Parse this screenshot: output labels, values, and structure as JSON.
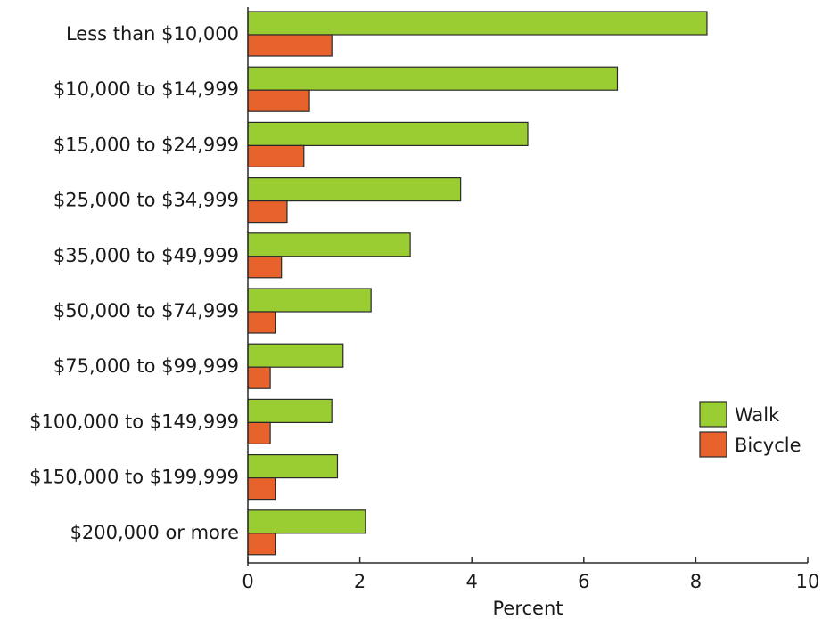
{
  "chart_data": {
    "type": "bar",
    "orientation": "horizontal",
    "title": "",
    "xlabel": "Percent",
    "ylabel": "",
    "xlim": [
      0,
      10
    ],
    "xticks": [
      0,
      2,
      4,
      6,
      8,
      10
    ],
    "grid": false,
    "legend_position": "right",
    "categories": [
      "Less than $10,000",
      "$10,000 to $14,999",
      "$15,000 to $24,999",
      "$25,000 to $34,999",
      "$35,000 to $49,999",
      "$50,000 to $74,999",
      "$75,000 to $99,999",
      "$100,000 to $149,999",
      "$150,000 to $199,999",
      "$200,000 or more"
    ],
    "series": [
      {
        "name": "Walk",
        "color": "#9acd32",
        "values": [
          8.2,
          6.6,
          5.0,
          3.8,
          2.9,
          2.2,
          1.7,
          1.5,
          1.6,
          2.1
        ]
      },
      {
        "name": "Bicycle",
        "color": "#e8632b",
        "values": [
          1.5,
          1.1,
          1.0,
          0.7,
          0.6,
          0.5,
          0.4,
          0.4,
          0.5,
          0.5
        ]
      }
    ]
  }
}
